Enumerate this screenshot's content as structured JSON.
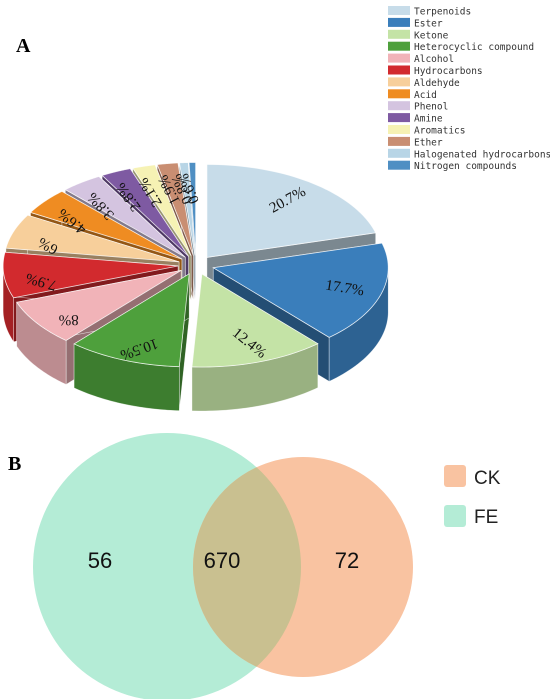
{
  "panel_a_label": "A",
  "panel_b_label": "B",
  "chart_data": [
    {
      "type": "pie",
      "style": "3d-exploded",
      "categories": [
        "Terpenoids",
        "Ester",
        "Ketone",
        "Heterocyclic compound",
        "Alcohol",
        "Hydrocarbons",
        "Aldehyde",
        "Acid",
        "Phenol",
        "Amine",
        "Aromatics",
        "Ether",
        "Halogenated hydrocarbons",
        "Nitrogen compounds"
      ],
      "values": [
        20.7,
        17.7,
        12.4,
        10.5,
        8,
        7.9,
        6,
        4.6,
        3.8,
        2.8,
        2.1,
        1.9,
        0.8,
        0.6
      ],
      "labels": [
        "20.7%",
        "17.7%",
        "12.4%",
        "10.5%",
        "8%",
        "7.9%",
        "6%",
        "4.6%",
        "3.8%",
        "2.8%",
        "2.1%",
        "1.9%",
        "0.8%",
        "0.6%"
      ],
      "colors": [
        "#c7dce9",
        "#3a7ebb",
        "#c4e3a6",
        "#4ea03c",
        "#f1b3b8",
        "#d22a2e",
        "#f7cf9b",
        "#ef8c22",
        "#d4c4e0",
        "#7e5aa2",
        "#f6f2b4",
        "#c98e72",
        "#b8d5e6",
        "#4f8fc3"
      ],
      "legend_position": "top-right"
    },
    {
      "type": "venn",
      "sets": [
        {
          "name": "CK",
          "color": "#f9c3a1",
          "only_value": 72
        },
        {
          "name": "FE",
          "color": "#b4ecd6",
          "only_value": 56
        }
      ],
      "intersection_value": 670,
      "legend_position": "right"
    }
  ]
}
